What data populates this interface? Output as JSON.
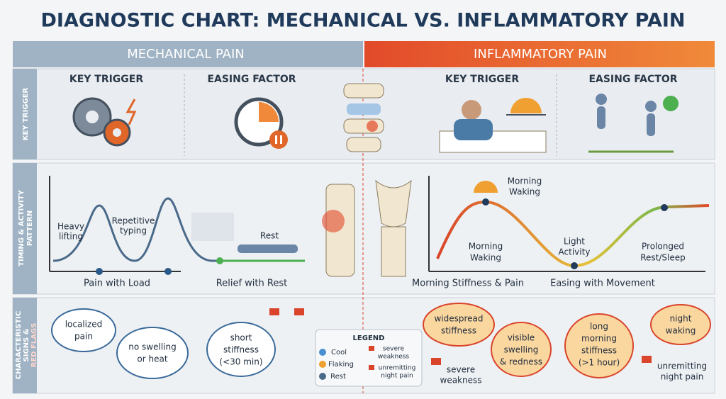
{
  "title": "DIAGNOSTIC CHART: MECHANICAL VS. INFLAMMATORY PAIN",
  "headers": {
    "mechanical": "MECHANICAL PAIN",
    "inflammatory": "INFLAMMATORY PAIN"
  },
  "row_labels": {
    "key_trigger": "KEY TRIGGER",
    "timing": [
      "TIMING & ACTIVITY",
      "PATTERN"
    ],
    "signs": [
      "CHARACTERISTIC",
      "SIGNS &",
      "RED FLAGS"
    ]
  },
  "mechanical": {
    "key_trigger": "KEY TRIGGER",
    "easing_factor": "EASING FACTOR",
    "heavy_lifting": [
      "Heavy",
      "lifting"
    ],
    "repetitive_typing": [
      "Repetitive",
      "typing"
    ],
    "rest": "Rest",
    "pain_with_load": "Pain with Load",
    "relief_with_rest": "Relief with Rest",
    "bubbles": [
      [
        "localized",
        "pain"
      ],
      [
        "no swelling",
        "or heat"
      ],
      [
        "short",
        "stiffness",
        "(<30 min)"
      ]
    ]
  },
  "legend": {
    "title": "LEGEND",
    "items": [
      "Cool",
      "Flaking",
      "Rest"
    ],
    "flags": [
      [
        "severe",
        "weakness"
      ],
      [
        "unremitting",
        "night pain"
      ]
    ]
  },
  "inflammatory": {
    "key_trigger": "KEY TRIGGER",
    "easing_factor": "EASING FACTOR",
    "morning_waking_top": [
      "Morning",
      "Waking"
    ],
    "morning_waking": [
      "Morning",
      "Waking"
    ],
    "light_activity": [
      "Light",
      "Activity"
    ],
    "prolonged_rest": [
      "Prolonged",
      "Rest/Sleep"
    ],
    "morning_stiffness": "Morning Stiffness & Pain",
    "easing_with_movement": "Easing with Movement",
    "bubbles": [
      [
        "widespread",
        "stiffness"
      ],
      [
        "visible",
        "swelling",
        "& redness"
      ],
      [
        "long",
        "morning",
        "stiffness",
        "(>1 hour)"
      ],
      [
        "night",
        "waking"
      ]
    ],
    "flags": [
      [
        "severe",
        "weakness"
      ],
      [
        "unremitting",
        "night pain"
      ]
    ]
  }
}
